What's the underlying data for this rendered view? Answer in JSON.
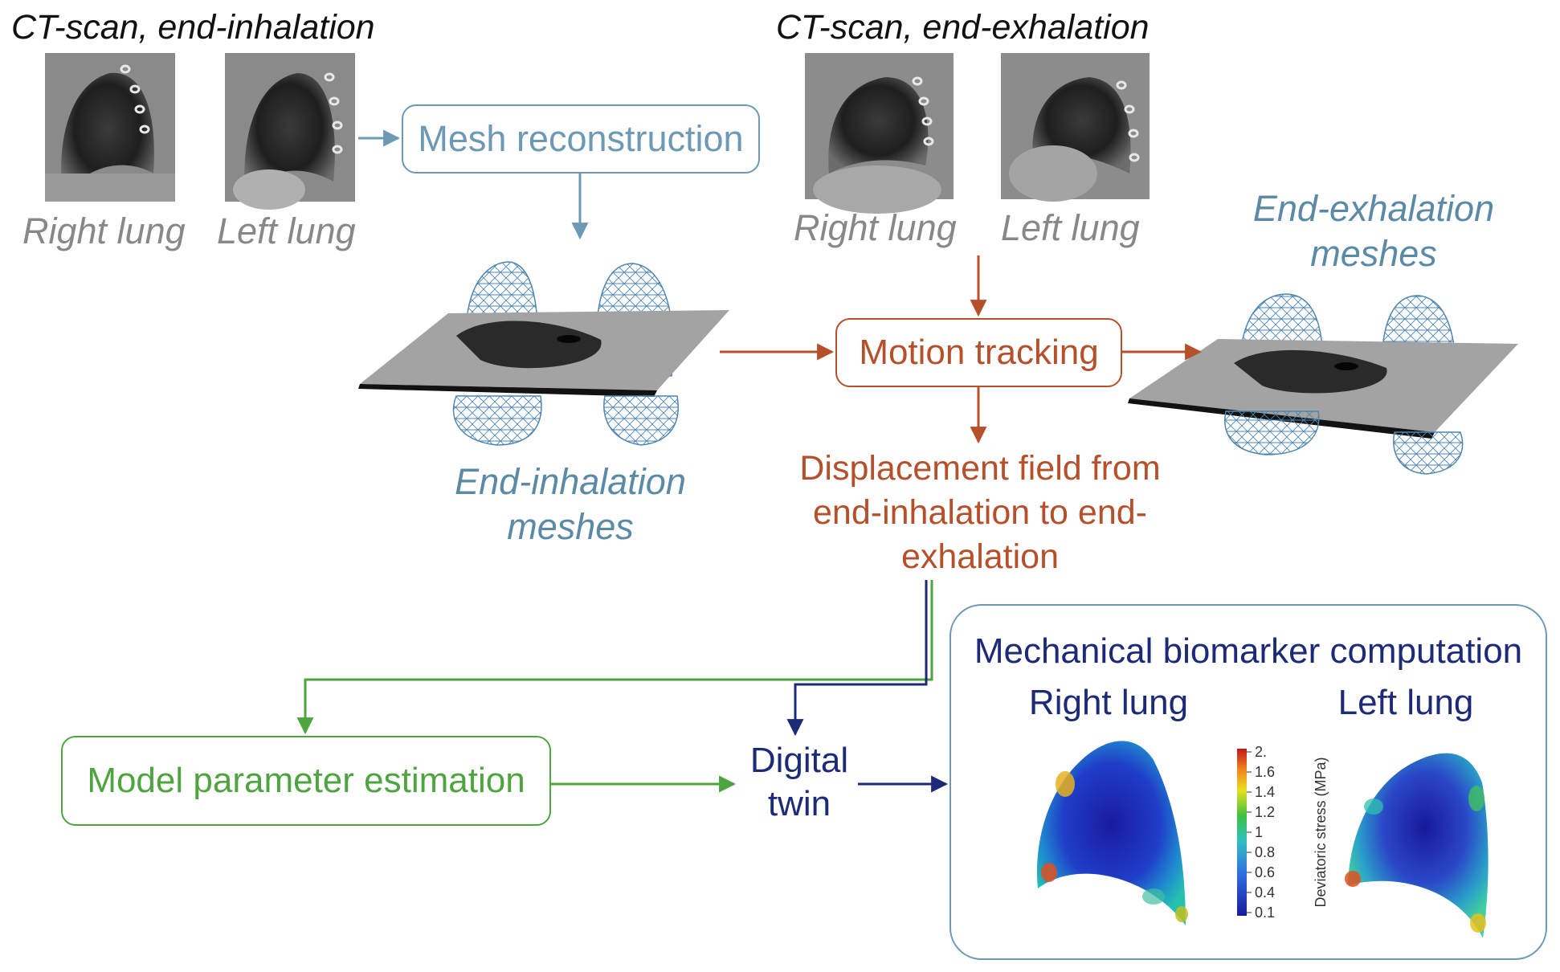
{
  "ct_inhalation": {
    "title": "CT-scan, end-inhalation",
    "right_label": "Right lung",
    "left_label": "Left lung"
  },
  "ct_exhalation": {
    "title": "CT-scan, end-exhalation",
    "right_label": "Right lung",
    "left_label": "Left lung"
  },
  "mesh_reconstruction": {
    "label": "Mesh reconstruction"
  },
  "end_inhalation_meshes": {
    "line1": "End-inhalation",
    "line2": "meshes"
  },
  "end_exhalation_meshes": {
    "line1": "End-exhalation",
    "line2": "meshes"
  },
  "motion_tracking": {
    "label": "Motion tracking"
  },
  "displacement": {
    "line1": "Displacement field from",
    "line2": "end-inhalation to end-",
    "line3": "exhalation"
  },
  "model_parameter": {
    "label": "Model parameter estimation"
  },
  "digital_twin": {
    "line1": "Digital",
    "line2": "twin"
  },
  "biomarker": {
    "title": "Mechanical biomarker computation",
    "right_label": "Right lung",
    "left_label": "Left lung",
    "colorbar_title": "Deviatoric stress (MPa)",
    "colorbar_ticks": [
      "2.",
      "1.6",
      "1.4",
      "1.2",
      "1",
      "0.8",
      "0.6",
      "0.4",
      "0.1"
    ]
  },
  "colors": {
    "blue": "#6d99b5",
    "orange": "#b6502a",
    "green": "#4ea53f",
    "navy": "#1c2a78"
  }
}
